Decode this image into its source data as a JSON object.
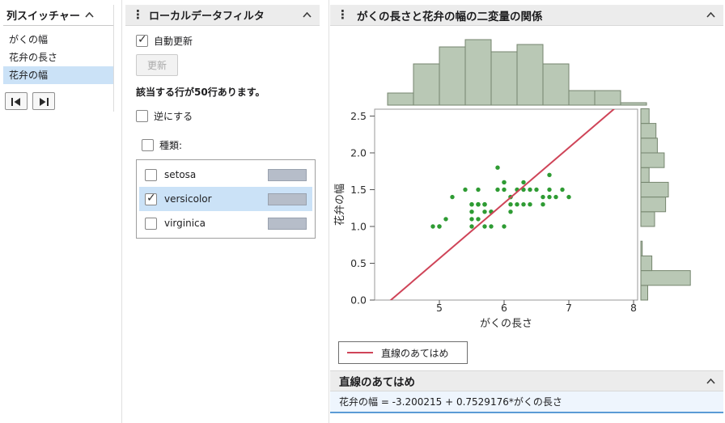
{
  "column_switcher": {
    "title": "列スイッチャー",
    "items": [
      {
        "label": "がくの幅",
        "selected": false
      },
      {
        "label": "花弁の長さ",
        "selected": false
      },
      {
        "label": "花弁の幅",
        "selected": true
      }
    ]
  },
  "filter": {
    "title": "ローカルデータフィルタ",
    "auto_update_label": "自動更新",
    "auto_update_checked": true,
    "update_button": "更新",
    "update_button_disabled": true,
    "match_text": "該当する行が50行あります。",
    "invert_label": "逆にする",
    "invert_checked": false,
    "field_label": "種類:",
    "field_checked": false,
    "options": [
      {
        "label": "setosa",
        "checked": false,
        "selected": false
      },
      {
        "label": "versicolor",
        "checked": true,
        "selected": true
      },
      {
        "label": "virginica",
        "checked": false,
        "selected": false
      }
    ]
  },
  "report": {
    "title": "がくの長さと花弁の幅の二変量の関係",
    "legend_label": "直線のあてはめ",
    "fit_section_title": "直線のあてはめ",
    "fit_equation": "花弁の幅 = -3.200215 + 0.7529176*がくの長さ"
  },
  "chart_data": {
    "type": "scatter",
    "title": "がくの長さと花弁の幅の二変量の関係",
    "xlabel": "がくの長さ",
    "ylabel": "花弁の幅",
    "xlim": [
      4.0,
      8.0625
    ],
    "ylim": [
      0.0,
      2.59
    ],
    "x_ticks": [
      5,
      6,
      7,
      8
    ],
    "y_ticks": [
      0.0,
      0.5,
      1.0,
      1.5,
      2.0,
      2.5
    ],
    "grid": false,
    "points_series": "versicolor (filtered rows)",
    "point_color": "#2e9b33",
    "points": [
      [
        7.0,
        1.4
      ],
      [
        6.4,
        1.5
      ],
      [
        6.9,
        1.5
      ],
      [
        5.5,
        1.3
      ],
      [
        6.5,
        1.5
      ],
      [
        5.7,
        1.3
      ],
      [
        6.3,
        1.6
      ],
      [
        4.9,
        1.0
      ],
      [
        6.6,
        1.3
      ],
      [
        5.2,
        1.4
      ],
      [
        5.0,
        1.0
      ],
      [
        5.9,
        1.5
      ],
      [
        6.0,
        1.0
      ],
      [
        6.1,
        1.4
      ],
      [
        5.6,
        1.3
      ],
      [
        6.7,
        1.4
      ],
      [
        5.6,
        1.5
      ],
      [
        5.8,
        1.0
      ],
      [
        6.2,
        1.5
      ],
      [
        5.6,
        1.1
      ],
      [
        5.9,
        1.8
      ],
      [
        6.1,
        1.3
      ],
      [
        6.3,
        1.5
      ],
      [
        6.1,
        1.2
      ],
      [
        6.4,
        1.3
      ],
      [
        6.6,
        1.4
      ],
      [
        6.8,
        1.4
      ],
      [
        6.7,
        1.7
      ],
      [
        6.0,
        1.5
      ],
      [
        5.7,
        1.0
      ],
      [
        5.5,
        1.1
      ],
      [
        5.5,
        1.0
      ],
      [
        5.8,
        1.2
      ],
      [
        6.0,
        1.6
      ],
      [
        5.4,
        1.5
      ],
      [
        6.0,
        1.6
      ],
      [
        6.7,
        1.5
      ],
      [
        6.3,
        1.3
      ],
      [
        5.6,
        1.3
      ],
      [
        5.5,
        1.3
      ],
      [
        5.5,
        1.2
      ],
      [
        6.1,
        1.4
      ],
      [
        5.8,
        1.2
      ],
      [
        5.0,
        1.0
      ],
      [
        5.6,
        1.3
      ],
      [
        5.7,
        1.2
      ],
      [
        5.7,
        1.3
      ],
      [
        6.2,
        1.3
      ],
      [
        5.1,
        1.1
      ],
      [
        5.7,
        1.3
      ]
    ],
    "fit": {
      "label": "直線のあてはめ",
      "intercept": -3.200215,
      "slope": 0.7529176,
      "color": "#cf4458",
      "equation": "花弁の幅 = -3.200215 + 0.7529176*がくの長さ"
    },
    "x_histogram": {
      "bin_start": 4.2,
      "bin_width": 0.4,
      "counts": [
        5,
        17,
        24,
        27,
        22,
        25,
        17,
        6,
        6,
        1
      ]
    },
    "y_histogram": {
      "bin_start": 0.0,
      "bin_width": 0.2,
      "counts": [
        5,
        36,
        8,
        1,
        0,
        10,
        18,
        20,
        6,
        17,
        12,
        11,
        6
      ]
    },
    "hist_fill": "#b9c8b5",
    "hist_stroke": "#75856e"
  }
}
